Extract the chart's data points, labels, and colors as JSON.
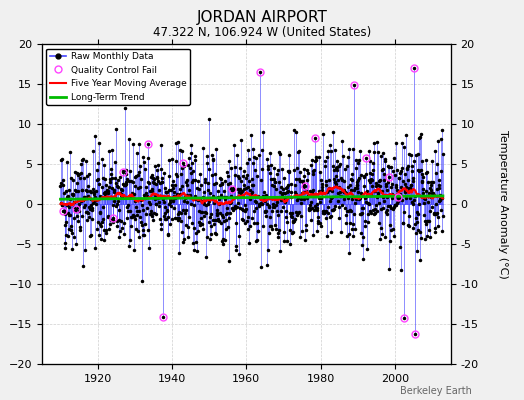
{
  "title": "JORDAN AIRPORT",
  "subtitle": "47.322 N, 106.924 W (United States)",
  "ylabel": "Temperature Anomaly (°C)",
  "credit": "Berkeley Earth",
  "ylim": [
    -20,
    20
  ],
  "yticks": [
    -20,
    -15,
    -10,
    -5,
    0,
    5,
    10,
    15,
    20
  ],
  "xlim": [
    1905,
    2015
  ],
  "xticks": [
    1920,
    1940,
    1960,
    1980,
    2000
  ],
  "start_year": 1910,
  "end_year": 2013,
  "seed": 42,
  "bg_color": "#f0f0f0",
  "plot_bg_color": "#ffffff",
  "raw_line_color": "#4444ff",
  "raw_marker_color": "#000000",
  "qc_fail_color": "#ff44ff",
  "moving_avg_color": "#ff0000",
  "trend_color": "#00bb00",
  "trend_slope": 0.004,
  "trend_intercept": 0.8,
  "moving_avg_window": 60,
  "noise_std": 3.2,
  "title_fontsize": 11,
  "subtitle_fontsize": 8.5,
  "label_fontsize": 8,
  "tick_fontsize": 8,
  "n_qc_fails": 18
}
